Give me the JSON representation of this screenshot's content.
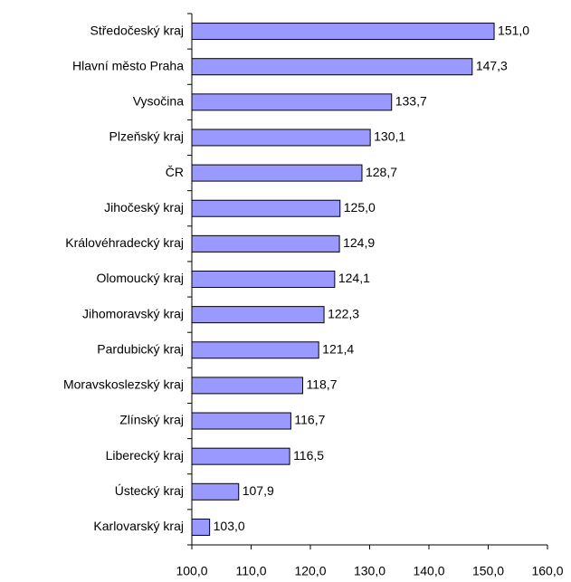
{
  "chart_data": {
    "type": "bar",
    "orientation": "horizontal",
    "categories": [
      "Středočeský kraj",
      "Hlavní město Praha",
      "Vysočina",
      "Plzeňský kraj",
      "ČR",
      "Jihočeský kraj",
      "Královéhradecký kraj",
      "Olomoucký kraj",
      "Jihomoravský kraj",
      "Pardubický kraj",
      "Moravskoslezský kraj",
      "Zlínský kraj",
      "Liberecký kraj",
      "Ústecký kraj",
      "Karlovarský kraj"
    ],
    "values": [
      151.0,
      147.3,
      133.7,
      130.1,
      128.7,
      125.0,
      124.9,
      124.1,
      122.3,
      121.4,
      118.7,
      116.7,
      116.5,
      107.9,
      103.0
    ],
    "value_labels": [
      "151,0",
      "147,3",
      "133,7",
      "130,1",
      "128,7",
      "125,0",
      "124,9",
      "124,1",
      "122,3",
      "121,4",
      "118,7",
      "116,7",
      "116,5",
      "107,9",
      "103,0"
    ],
    "color": "#9999ff",
    "xlim": [
      100,
      160
    ],
    "xticks": [
      {
        "value": 100,
        "label": "100,0"
      },
      {
        "value": 110,
        "label": "110,0"
      },
      {
        "value": 120,
        "label": "120,0"
      },
      {
        "value": 130,
        "label": "130,0"
      },
      {
        "value": 140,
        "label": "140,0"
      },
      {
        "value": 150,
        "label": "150,0"
      },
      {
        "value": 160,
        "label": "160,0"
      }
    ]
  }
}
